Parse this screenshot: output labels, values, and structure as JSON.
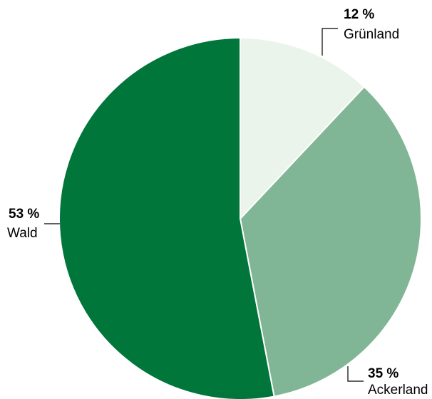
{
  "chart_data": {
    "type": "pie",
    "unit": "%",
    "slices": [
      {
        "name": "Grünland",
        "value": 12,
        "label": "12 %",
        "color": "#eaf4ea"
      },
      {
        "name": "Ackerland",
        "value": 35,
        "label": "35 %",
        "color": "#80b595"
      },
      {
        "name": "Wald",
        "value": 53,
        "label": "53 %",
        "color": "#00763b"
      }
    ],
    "start_angle_deg": 0,
    "direction": "clockwise",
    "slice_border_color": "#ffffff",
    "legend": "none"
  }
}
